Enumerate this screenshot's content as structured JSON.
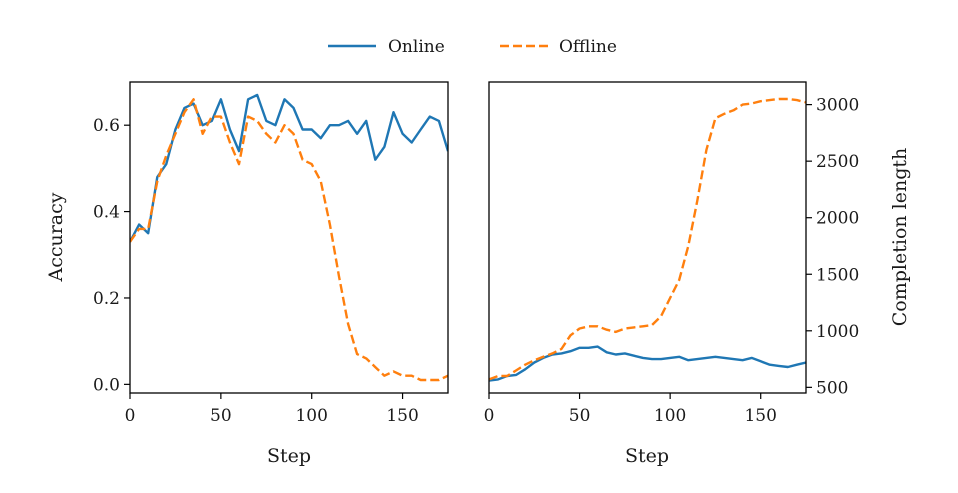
{
  "legend": {
    "items": [
      {
        "label": "Online",
        "color": "#1f77b4",
        "style": "solid"
      },
      {
        "label": "Offline",
        "color": "#ff7f0e",
        "style": "dashed"
      }
    ],
    "placement": "top-center"
  },
  "chart_data": [
    {
      "type": "line",
      "xlabel": "Step",
      "ylabel": "Accuracy",
      "xlim": [
        0,
        175
      ],
      "ylim": [
        -0.02,
        0.7
      ],
      "xticks": [
        "0",
        "50",
        "100",
        "150"
      ],
      "xtick_values": [
        0,
        50,
        100,
        150
      ],
      "yticks": [
        "0.0",
        "0.2",
        "0.4",
        "0.6"
      ],
      "ytick_values": [
        0.0,
        0.2,
        0.4,
        0.6
      ],
      "grid": false,
      "series": [
        {
          "name": "Online",
          "color": "#1f77b4",
          "style": "solid",
          "x": [
            0,
            5,
            10,
            15,
            20,
            25,
            30,
            35,
            40,
            45,
            50,
            55,
            60,
            65,
            70,
            75,
            80,
            85,
            90,
            95,
            100,
            105,
            110,
            115,
            120,
            125,
            130,
            135,
            140,
            145,
            150,
            155,
            160,
            165,
            170,
            175
          ],
          "y": [
            0.33,
            0.37,
            0.35,
            0.48,
            0.51,
            0.59,
            0.64,
            0.65,
            0.6,
            0.61,
            0.66,
            0.59,
            0.54,
            0.66,
            0.67,
            0.61,
            0.6,
            0.66,
            0.64,
            0.59,
            0.59,
            0.57,
            0.6,
            0.6,
            0.61,
            0.58,
            0.61,
            0.52,
            0.55,
            0.63,
            0.58,
            0.56,
            0.59,
            0.62,
            0.61,
            0.54
          ]
        },
        {
          "name": "Offline",
          "color": "#ff7f0e",
          "style": "dashed",
          "x": [
            0,
            5,
            10,
            15,
            20,
            25,
            30,
            35,
            40,
            45,
            50,
            55,
            60,
            65,
            70,
            75,
            80,
            85,
            90,
            95,
            100,
            105,
            110,
            115,
            120,
            125,
            130,
            135,
            140,
            145,
            150,
            155,
            160,
            165,
            170,
            175
          ],
          "y": [
            0.33,
            0.36,
            0.36,
            0.47,
            0.53,
            0.58,
            0.63,
            0.66,
            0.58,
            0.62,
            0.62,
            0.56,
            0.51,
            0.62,
            0.61,
            0.58,
            0.56,
            0.6,
            0.58,
            0.52,
            0.51,
            0.47,
            0.37,
            0.25,
            0.14,
            0.07,
            0.06,
            0.04,
            0.02,
            0.03,
            0.02,
            0.02,
            0.01,
            0.01,
            0.01,
            0.02
          ]
        }
      ]
    },
    {
      "type": "line",
      "xlabel": "Step",
      "ylabel": "Completion length",
      "yaxis_side": "right",
      "xlim": [
        0,
        175
      ],
      "ylim": [
        450,
        3200
      ],
      "xticks": [
        "0",
        "50",
        "100",
        "150"
      ],
      "xtick_values": [
        0,
        50,
        100,
        150
      ],
      "yticks": [
        "500",
        "1000",
        "1500",
        "2000",
        "2500",
        "3000"
      ],
      "ytick_values": [
        500,
        1000,
        1500,
        2000,
        2500,
        3000
      ],
      "grid": false,
      "series": [
        {
          "name": "Online",
          "color": "#1f77b4",
          "style": "solid",
          "x": [
            0,
            5,
            10,
            15,
            20,
            25,
            30,
            35,
            40,
            45,
            50,
            55,
            60,
            65,
            70,
            75,
            80,
            85,
            90,
            95,
            100,
            105,
            110,
            115,
            120,
            125,
            130,
            135,
            140,
            145,
            150,
            155,
            160,
            165,
            170,
            175
          ],
          "y": [
            560,
            570,
            600,
            610,
            660,
            720,
            760,
            790,
            800,
            820,
            850,
            850,
            860,
            810,
            790,
            800,
            780,
            760,
            750,
            750,
            760,
            770,
            740,
            750,
            760,
            770,
            760,
            750,
            740,
            760,
            730,
            700,
            690,
            680,
            700,
            720
          ]
        },
        {
          "name": "Offline",
          "color": "#ff7f0e",
          "style": "dashed",
          "x": [
            0,
            5,
            10,
            15,
            20,
            25,
            30,
            35,
            40,
            45,
            50,
            55,
            60,
            65,
            70,
            75,
            80,
            85,
            90,
            95,
            100,
            105,
            110,
            115,
            120,
            125,
            130,
            135,
            140,
            145,
            150,
            155,
            160,
            165,
            170,
            175
          ],
          "y": [
            570,
            600,
            600,
            650,
            700,
            740,
            770,
            800,
            840,
            960,
            1020,
            1040,
            1040,
            1010,
            990,
            1020,
            1030,
            1040,
            1050,
            1130,
            1290,
            1450,
            1750,
            2150,
            2600,
            2880,
            2920,
            2950,
            3000,
            3010,
            3030,
            3040,
            3050,
            3050,
            3040,
            3020
          ]
        }
      ]
    }
  ]
}
